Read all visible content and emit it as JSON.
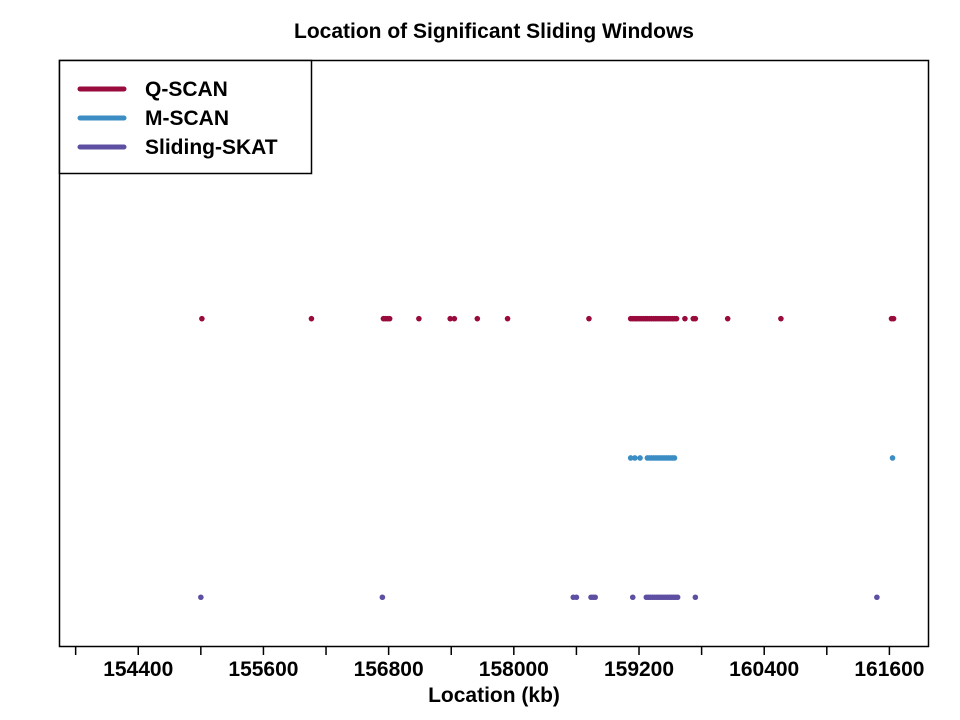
{
  "chart_data": {
    "type": "scatter",
    "title": "Location of Significant Sliding Windows",
    "xlabel": "Location (kb)",
    "ylabel": "",
    "xlim": [
      153650,
      161970
    ],
    "ylim": [
      -0.35,
      3.85
    ],
    "x_ticks": [
      154400,
      155600,
      156800,
      158000,
      159200,
      160400,
      161600
    ],
    "grid": false,
    "legend_position": "top-left",
    "series": [
      {
        "name": "Q-SCAN",
        "color": "#990A3D",
        "level": 2,
        "x": [
          155010,
          156060,
          156750,
          156770,
          156790,
          156810,
          157090,
          157390,
          157430,
          157650,
          157940,
          158720,
          159120,
          159140,
          159160,
          159180,
          159200,
          159220,
          159240,
          159260,
          159280,
          159300,
          159320,
          159340,
          159360,
          159380,
          159400,
          159420,
          159440,
          159460,
          159480,
          159500,
          159520,
          159540,
          159560,
          159640,
          159720,
          159740,
          160050,
          160560,
          161620,
          161640
        ]
      },
      {
        "name": "M-SCAN",
        "color": "#3B8DC4",
        "level": 1,
        "x": [
          159120,
          159160,
          159210,
          159280,
          159300,
          159320,
          159340,
          159360,
          159380,
          159400,
          159420,
          159440,
          159460,
          159480,
          159500,
          159520,
          159540,
          161630
        ]
      },
      {
        "name": "Sliding-SKAT",
        "color": "#5E4FA2",
        "level": 0,
        "x": [
          155000,
          156740,
          158570,
          158600,
          158740,
          158760,
          158780,
          159140,
          159270,
          159290,
          159310,
          159330,
          159350,
          159370,
          159390,
          159410,
          159430,
          159450,
          159470,
          159490,
          159510,
          159530,
          159550,
          159570,
          159740,
          161480
        ]
      }
    ]
  }
}
